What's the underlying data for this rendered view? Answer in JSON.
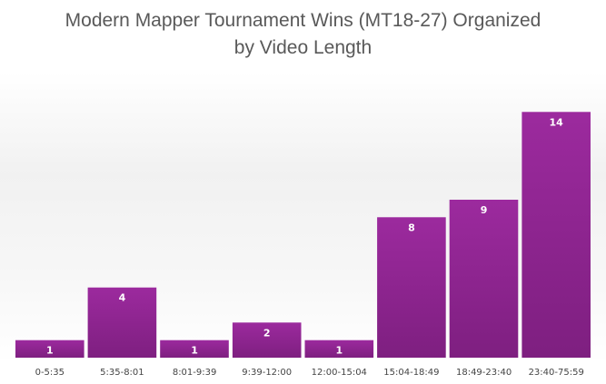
{
  "chart_data": {
    "type": "bar",
    "title_lines": [
      "Modern Mapper Tournament Wins (MT18-27) Organized",
      "by Video Length"
    ],
    "categories": [
      "0-5:35",
      "5:35-8:01",
      "8:01-9:39",
      "9:39-12:00",
      "12:00-15:04",
      "15:04-18:49",
      "18:49-23:40",
      "23:40-75:59"
    ],
    "values": [
      1,
      4,
      1,
      2,
      1,
      8,
      9,
      14
    ],
    "xlabel": "",
    "ylabel": "",
    "ylim": [
      0,
      15
    ],
    "grid": false,
    "legend": "none",
    "data_labels": true,
    "bar_color": "#9C2A9E",
    "bar_color_dark": "#7E1F80"
  }
}
